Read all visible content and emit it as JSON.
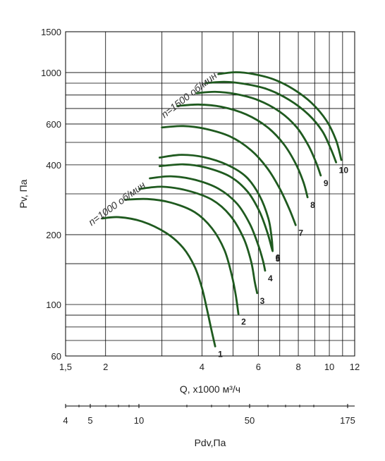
{
  "chart_data": {
    "type": "line",
    "title": "",
    "xlabel": "Q, x1000 м³/ч",
    "ylabel": "Pv, Па",
    "x_scale": "log",
    "y_scale": "log",
    "xlim": [
      1.5,
      12
    ],
    "ylim": [
      60,
      1500
    ],
    "x_ticks": [
      1.5,
      2,
      4,
      6,
      8,
      10,
      12
    ],
    "x_tick_labels": [
      "1,5",
      "2",
      "4",
      "6",
      "8",
      "10",
      "12"
    ],
    "y_ticks": [
      60,
      100,
      200,
      400,
      600,
      1000,
      1500
    ],
    "y_tick_labels": [
      "60",
      "100",
      "200",
      "400",
      "600",
      "1000",
      "1500"
    ],
    "x_grid": [
      1.5,
      2,
      3,
      4,
      5,
      6,
      7,
      8,
      9,
      10,
      11,
      12
    ],
    "y_grid": [
      60,
      70,
      80,
      90,
      100,
      150,
      200,
      300,
      400,
      500,
      600,
      700,
      800,
      900,
      1000,
      1500
    ],
    "grid": true,
    "line_color": "#1f5a1f",
    "grid_color": "#000000",
    "secondary_axis": {
      "label": "Pdv,Па",
      "tick_values": [
        4,
        5,
        10,
        50,
        175
      ],
      "tick_labels": [
        "4",
        "5",
        "10",
        "50",
        "175"
      ]
    },
    "annotations": [
      {
        "text": "n=1000 об/мин",
        "x": 2.2,
        "y": 265
      },
      {
        "text": "n=1500 об/мин",
        "x": 3.7,
        "y": 780
      }
    ],
    "series": [
      {
        "label": "1",
        "points": [
          [
            1.95,
            235
          ],
          [
            2.2,
            238
          ],
          [
            2.6,
            228
          ],
          [
            3.1,
            203
          ],
          [
            3.5,
            175
          ],
          [
            3.8,
            145
          ],
          [
            4.0,
            118
          ],
          [
            4.15,
            95
          ],
          [
            4.28,
            78
          ],
          [
            4.4,
            66
          ]
        ]
      },
      {
        "label": "2",
        "points": [
          [
            2.3,
            283
          ],
          [
            2.7,
            285
          ],
          [
            3.2,
            275
          ],
          [
            3.8,
            250
          ],
          [
            4.3,
            213
          ],
          [
            4.7,
            172
          ],
          [
            4.95,
            135
          ],
          [
            5.1,
            110
          ],
          [
            5.2,
            91
          ]
        ]
      },
      {
        "label": "3",
        "points": [
          [
            2.55,
            315
          ],
          [
            3.0,
            322
          ],
          [
            3.6,
            310
          ],
          [
            4.3,
            283
          ],
          [
            4.9,
            242
          ],
          [
            5.4,
            193
          ],
          [
            5.7,
            153
          ],
          [
            5.85,
            125
          ],
          [
            5.95,
            112
          ]
        ]
      },
      {
        "label": "4",
        "points": [
          [
            2.75,
            350
          ],
          [
            3.2,
            357
          ],
          [
            3.8,
            345
          ],
          [
            4.5,
            316
          ],
          [
            5.15,
            272
          ],
          [
            5.65,
            222
          ],
          [
            6.0,
            180
          ],
          [
            6.2,
            155
          ],
          [
            6.3,
            140
          ]
        ]
      },
      {
        "label": "5",
        "points": [
          [
            2.95,
            395
          ],
          [
            3.5,
            402
          ],
          [
            4.1,
            390
          ],
          [
            4.9,
            356
          ],
          [
            5.55,
            307
          ],
          [
            6.05,
            252
          ],
          [
            6.4,
            205
          ],
          [
            6.6,
            176
          ],
          [
            6.65,
            170
          ]
        ]
      },
      {
        "label": "6",
        "points": [
          [
            2.95,
            430
          ],
          [
            3.45,
            442
          ],
          [
            4.05,
            432
          ],
          [
            4.8,
            400
          ],
          [
            5.5,
            355
          ],
          [
            6.05,
            295
          ],
          [
            6.45,
            235
          ],
          [
            6.6,
            195
          ],
          [
            6.65,
            172
          ]
        ]
      },
      {
        "label": "7",
        "points": [
          [
            3.0,
            580
          ],
          [
            3.5,
            588
          ],
          [
            4.1,
            572
          ],
          [
            4.9,
            530
          ],
          [
            5.7,
            462
          ],
          [
            6.4,
            387
          ],
          [
            7.0,
            316
          ],
          [
            7.5,
            258
          ],
          [
            7.85,
            220
          ]
        ]
      },
      {
        "label": "8",
        "points": [
          [
            3.35,
            718
          ],
          [
            3.9,
            728
          ],
          [
            4.6,
            712
          ],
          [
            5.5,
            660
          ],
          [
            6.4,
            582
          ],
          [
            7.2,
            492
          ],
          [
            7.85,
            405
          ],
          [
            8.3,
            337
          ],
          [
            8.55,
            290
          ]
        ]
      },
      {
        "label": "9",
        "points": [
          [
            3.85,
            815
          ],
          [
            4.4,
            826
          ],
          [
            5.1,
            808
          ],
          [
            6.0,
            760
          ],
          [
            7.0,
            678
          ],
          [
            7.9,
            582
          ],
          [
            8.6,
            485
          ],
          [
            9.1,
            408
          ],
          [
            9.4,
            360
          ]
        ]
      },
      {
        "label": "10",
        "points": [
          [
            4.1,
            900
          ],
          [
            4.7,
            912
          ],
          [
            5.4,
            895
          ],
          [
            6.4,
            848
          ],
          [
            7.5,
            762
          ],
          [
            8.6,
            660
          ],
          [
            9.5,
            560
          ],
          [
            10.1,
            470
          ],
          [
            10.5,
            410
          ]
        ]
      },
      {
        "label": "",
        "points": [
          [
            4.5,
            985
          ],
          [
            5.1,
            1003
          ],
          [
            5.8,
            985
          ],
          [
            6.7,
            935
          ],
          [
            7.7,
            850
          ],
          [
            8.8,
            740
          ],
          [
            9.8,
            620
          ],
          [
            10.5,
            510
          ],
          [
            10.9,
            420
          ]
        ]
      }
    ]
  }
}
